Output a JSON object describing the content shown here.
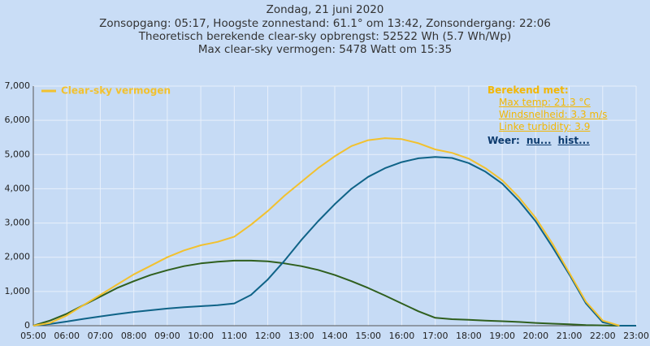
{
  "chart_data": {
    "type": "line",
    "title": "Zondag, 21 juni 2020",
    "subtitle": [
      "Zonsopgang: 05:17, Hoogste zonnestand: 61.1° om 13:42, Zonsondergang: 22:06",
      "Theoretisch berekende clear-sky opbrengst: 52522 Wh (5.7 Wh/Wp)",
      "Max clear-sky vermogen: 5478 Watt om 15:35"
    ],
    "x": [
      5,
      5.5,
      6,
      6.5,
      7,
      7.5,
      8,
      8.5,
      9,
      9.5,
      10,
      10.5,
      11,
      11.5,
      12,
      12.5,
      13,
      13.5,
      14,
      14.5,
      15,
      15.5,
      16,
      16.5,
      17,
      17.5,
      18,
      18.5,
      19,
      19.5,
      20,
      20.5,
      21,
      21.5,
      22,
      22.5,
      23
    ],
    "series": [
      {
        "name": "Clear-sky vermogen",
        "color": "#f2c12e",
        "values": [
          0,
          80,
          300,
          600,
          900,
          1200,
          1500,
          1750,
          2000,
          2200,
          2350,
          2450,
          2600,
          2950,
          3350,
          3800,
          4200,
          4600,
          4950,
          5250,
          5420,
          5478,
          5450,
          5330,
          5150,
          5050,
          4880,
          4600,
          4250,
          3750,
          3150,
          2400,
          1550,
          700,
          150,
          0,
          null
        ]
      },
      {
        "color": "#0f6387",
        "values": [
          0,
          50,
          120,
          200,
          270,
          340,
          400,
          450,
          500,
          540,
          570,
          600,
          650,
          900,
          1350,
          1900,
          2500,
          3050,
          3550,
          4000,
          4350,
          4600,
          4780,
          4890,
          4930,
          4900,
          4750,
          4500,
          4150,
          3650,
          3050,
          2300,
          1500,
          650,
          100,
          0,
          0
        ]
      },
      {
        "color": "#2f5f1e",
        "values": [
          0,
          150,
          350,
          600,
          850,
          1100,
          1300,
          1480,
          1620,
          1740,
          1820,
          1870,
          1900,
          1900,
          1880,
          1820,
          1740,
          1630,
          1480,
          1300,
          1100,
          880,
          650,
          420,
          230,
          190,
          170,
          150,
          130,
          110,
          80,
          60,
          40,
          20,
          10,
          0,
          0
        ]
      }
    ],
    "xlim": [
      5,
      23
    ],
    "xticks": [
      {
        "value": 5,
        "label": "05:00"
      },
      {
        "value": 6,
        "label": "06:00"
      },
      {
        "value": 7,
        "label": "07:00"
      },
      {
        "value": 8,
        "label": "08:00"
      },
      {
        "value": 9,
        "label": "09:00"
      },
      {
        "value": 10,
        "label": "10:00"
      },
      {
        "value": 11,
        "label": "11:00"
      },
      {
        "value": 12,
        "label": "12:00"
      },
      {
        "value": 13,
        "label": "13:00"
      },
      {
        "value": 14,
        "label": "14:00"
      },
      {
        "value": 15,
        "label": "15:00"
      },
      {
        "value": 16,
        "label": "16:00"
      },
      {
        "value": 17,
        "label": "17:00"
      },
      {
        "value": 18,
        "label": "18:00"
      },
      {
        "value": 19,
        "label": "19:00"
      },
      {
        "value": 20,
        "label": "20:00"
      },
      {
        "value": 21,
        "label": "21:00"
      },
      {
        "value": 22,
        "label": "22:00"
      },
      {
        "value": 23,
        "label": "23:00"
      }
    ],
    "ylim": [
      0,
      7000
    ],
    "yticks": [
      0,
      {
        "value": 1000,
        "label": "1,000"
      },
      {
        "value": 2000,
        "label": "2,000"
      },
      {
        "value": 3000,
        "label": "3,000"
      },
      {
        "value": 4000,
        "label": "4,000"
      },
      {
        "value": 5000,
        "label": "5,000"
      },
      {
        "value": 6000,
        "label": "6,000"
      },
      {
        "value": 7000,
        "label": "7,000"
      }
    ],
    "grid": true,
    "legend": "upper left",
    "annotations": {
      "heading": "Berekend met:",
      "items": [
        "Max temp: 21.3 °C",
        "Windsnelheid: 3.3 m/s",
        "Linke turbidity: 3.9"
      ],
      "weather_label": "Weer:",
      "weather_links": [
        "nu...",
        "hist..."
      ]
    }
  }
}
